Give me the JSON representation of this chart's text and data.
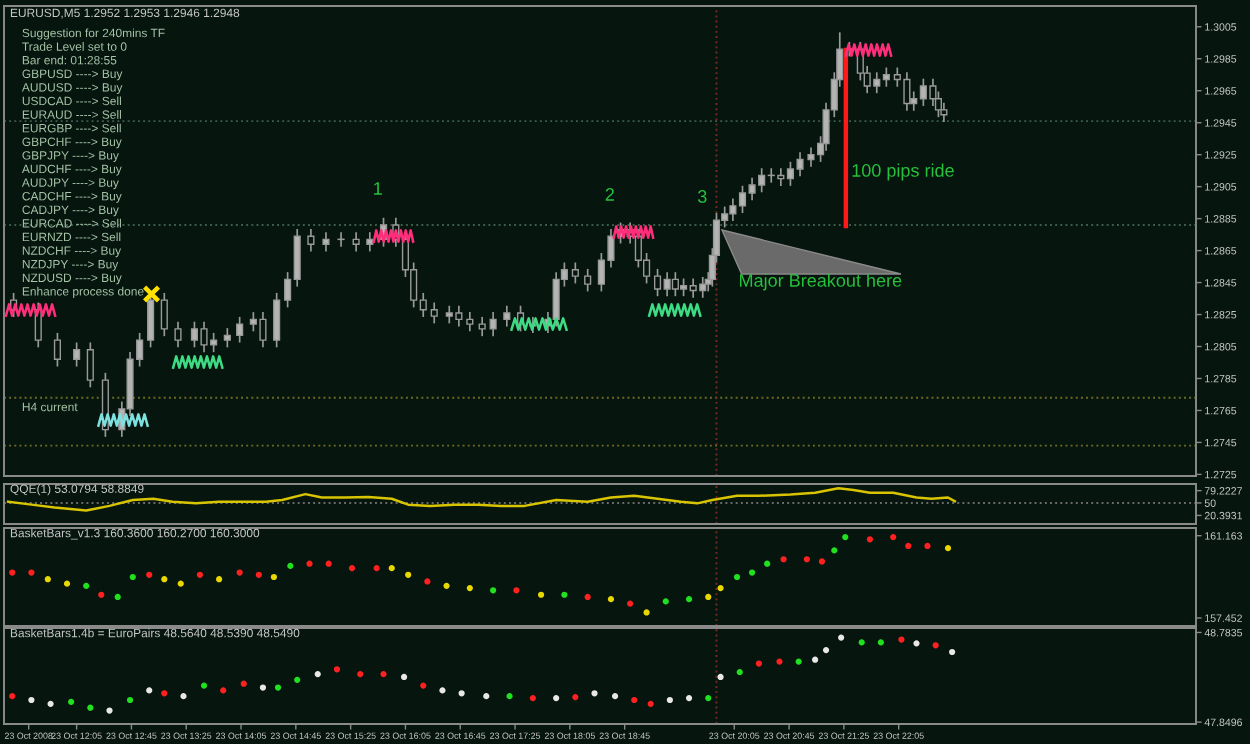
{
  "chart_data": [
    {
      "type": "candlestick",
      "title": "EURUSD,M5 1.2952 1.2953 1.2946 1.2948",
      "grid": false,
      "tick_labels": "y",
      "xlim": [
        "2008-10-23T11:12",
        "2008-10-24T01:42"
      ],
      "ylim": [
        1.2724,
        1.3018
      ],
      "yticks": [
        1.3005,
        1.2985,
        1.2965,
        1.2945,
        1.2925,
        1.2905,
        1.2885,
        1.2865,
        1.2845,
        1.2825,
        1.2805,
        1.2785,
        1.2765,
        1.2745,
        1.2725
      ],
      "x": [
        "2008-10-23T11:19",
        "2008-10-23T11:37",
        "2008-10-23T11:51",
        "2008-10-23T12:05",
        "2008-10-23T12:15",
        "2008-10-23T12:26",
        "2008-10-23T12:38",
        "2008-10-23T12:44",
        "2008-10-23T12:51",
        "2008-10-23T12:59",
        "2008-10-23T13:09",
        "2008-10-23T13:19",
        "2008-10-23T13:31",
        "2008-10-23T13:38",
        "2008-10-23T13:45",
        "2008-10-23T13:55",
        "2008-10-23T14:04",
        "2008-10-23T14:14",
        "2008-10-23T14:21",
        "2008-10-23T14:31",
        "2008-10-23T14:39",
        "2008-10-23T14:46",
        "2008-10-23T14:56",
        "2008-10-23T15:07",
        "2008-10-23T15:18",
        "2008-10-23T15:29",
        "2008-10-23T15:39",
        "2008-10-23T15:49",
        "2008-10-23T15:58",
        "2008-10-23T16:05",
        "2008-10-23T16:11",
        "2008-10-23T16:18",
        "2008-10-23T16:26",
        "2008-10-23T16:37",
        "2008-10-23T16:44",
        "2008-10-23T16:52",
        "2008-10-23T17:01",
        "2008-10-23T17:09",
        "2008-10-23T17:19",
        "2008-10-23T17:29",
        "2008-10-23T17:38",
        "2008-10-23T17:49",
        "2008-10-23T17:55",
        "2008-10-23T18:01",
        "2008-10-23T18:09",
        "2008-10-23T18:18",
        "2008-10-23T18:28",
        "2008-10-23T18:35",
        "2008-10-23T18:42",
        "2008-10-23T18:49",
        "2008-10-23T18:55",
        "2008-10-23T19:01",
        "2008-10-23T19:09",
        "2008-10-23T19:16",
        "2008-10-23T19:22",
        "2008-10-23T19:28",
        "2008-10-23T19:35",
        "2008-10-23T19:42",
        "2008-10-23T19:46",
        "2008-10-23T19:49",
        "2008-10-23T19:52",
        "2008-10-23T19:58",
        "2008-10-23T20:04",
        "2008-10-23T20:11",
        "2008-10-23T20:18",
        "2008-10-23T20:25",
        "2008-10-23T20:32",
        "2008-10-23T20:39",
        "2008-10-23T20:46",
        "2008-10-23T20:53",
        "2008-10-23T21:01",
        "2008-10-23T21:08",
        "2008-10-23T21:12",
        "2008-10-23T21:18",
        "2008-10-23T21:22",
        "2008-10-23T21:29",
        "2008-10-23T21:37",
        "2008-10-23T21:42",
        "2008-10-23T21:49",
        "2008-10-23T21:56",
        "2008-10-23T22:04",
        "2008-10-23T22:11",
        "2008-10-23T22:16",
        "2008-10-23T22:23",
        "2008-10-23T22:30",
        "2008-10-23T22:34",
        "2008-10-23T22:38"
      ],
      "ohlc": [
        [
          1.2834,
          1.2838,
          1.2824,
          1.2828
        ],
        [
          1.2828,
          1.2832,
          1.2805,
          1.2809
        ],
        [
          1.2809,
          1.2813,
          1.2793,
          1.2797
        ],
        [
          1.2797,
          1.2807,
          1.2793,
          1.2803
        ],
        [
          1.2803,
          1.2807,
          1.278,
          1.2784
        ],
        [
          1.2784,
          1.2788,
          1.2749,
          1.2753
        ],
        [
          1.2753,
          1.277,
          1.2749,
          1.2766
        ],
        [
          1.2766,
          1.2801,
          1.2762,
          1.2797
        ],
        [
          1.2797,
          1.2813,
          1.2793,
          1.2809
        ],
        [
          1.2809,
          1.2838,
          1.2805,
          1.2834
        ],
        [
          1.2834,
          1.2838,
          1.2812,
          1.2816
        ],
        [
          1.2816,
          1.282,
          1.2805,
          1.2809
        ],
        [
          1.2809,
          1.282,
          1.2805,
          1.2816
        ],
        [
          1.2816,
          1.282,
          1.2802,
          1.2806
        ],
        [
          1.2806,
          1.2813,
          1.2802,
          1.2809
        ],
        [
          1.2809,
          1.2816,
          1.2805,
          1.2812
        ],
        [
          1.2812,
          1.2823,
          1.2808,
          1.2819
        ],
        [
          1.2819,
          1.2826,
          1.2815,
          1.2822
        ],
        [
          1.2822,
          1.2826,
          1.2805,
          1.2809
        ],
        [
          1.2809,
          1.2838,
          1.2805,
          1.2834
        ],
        [
          1.2834,
          1.2851,
          1.283,
          1.2847
        ],
        [
          1.2847,
          1.2878,
          1.2843,
          1.2874
        ],
        [
          1.2874,
          1.2878,
          1.2865,
          1.2869
        ],
        [
          1.2869,
          1.2876,
          1.2865,
          1.2872
        ],
        [
          1.2872,
          1.2876,
          1.2868,
          1.2872
        ],
        [
          1.2872,
          1.2876,
          1.2865,
          1.2869
        ],
        [
          1.2869,
          1.2876,
          1.2865,
          1.2872
        ],
        [
          1.2872,
          1.2885,
          1.2868,
          1.2881
        ],
        [
          1.2881,
          1.2885,
          1.2868,
          1.2872
        ],
        [
          1.2872,
          1.2876,
          1.2849,
          1.2853
        ],
        [
          1.2853,
          1.2857,
          1.283,
          1.2834
        ],
        [
          1.2834,
          1.2838,
          1.2824,
          1.2828
        ],
        [
          1.2828,
          1.2832,
          1.282,
          1.2824
        ],
        [
          1.2824,
          1.283,
          1.282,
          1.2826
        ],
        [
          1.2826,
          1.283,
          1.2818,
          1.2822
        ],
        [
          1.2822,
          1.2826,
          1.2815,
          1.2819
        ],
        [
          1.2819,
          1.2823,
          1.2812,
          1.2816
        ],
        [
          1.2816,
          1.2826,
          1.2812,
          1.2822
        ],
        [
          1.2822,
          1.283,
          1.2818,
          1.2826
        ],
        [
          1.2826,
          1.283,
          1.2815,
          1.2819
        ],
        [
          1.2819,
          1.2823,
          1.2814,
          1.2818
        ],
        [
          1.2818,
          1.2826,
          1.2814,
          1.2822
        ],
        [
          1.2822,
          1.2851,
          1.2818,
          1.2847
        ],
        [
          1.2847,
          1.2857,
          1.2843,
          1.2853
        ],
        [
          1.2853,
          1.2857,
          1.2845,
          1.2849
        ],
        [
          1.2849,
          1.2853,
          1.284,
          1.2844
        ],
        [
          1.2844,
          1.2863,
          1.284,
          1.2859
        ],
        [
          1.2859,
          1.2878,
          1.2855,
          1.2874
        ],
        [
          1.2874,
          1.2882,
          1.287,
          1.2878
        ],
        [
          1.2878,
          1.2882,
          1.287,
          1.2874
        ],
        [
          1.2874,
          1.2878,
          1.2855,
          1.2859
        ],
        [
          1.2859,
          1.2863,
          1.2845,
          1.2849
        ],
        [
          1.2849,
          1.2853,
          1.2837,
          1.2841
        ],
        [
          1.2841,
          1.2851,
          1.2837,
          1.2847
        ],
        [
          1.2847,
          1.2851,
          1.2837,
          1.2841
        ],
        [
          1.2841,
          1.2847,
          1.2837,
          1.2843
        ],
        [
          1.2843,
          1.2847,
          1.2836,
          1.284
        ],
        [
          1.284,
          1.2848,
          1.2836,
          1.2844
        ],
        [
          1.2844,
          1.2851,
          1.284,
          1.2847
        ],
        [
          1.2847,
          1.2866,
          1.2843,
          1.2862
        ],
        [
          1.2862,
          1.2888,
          1.2858,
          1.2884
        ],
        [
          1.2884,
          1.2892,
          1.288,
          1.2888
        ],
        [
          1.2888,
          1.2897,
          1.2884,
          1.2893
        ],
        [
          1.2893,
          1.2905,
          1.2889,
          1.2901
        ],
        [
          1.2901,
          1.291,
          1.2897,
          1.2906
        ],
        [
          1.2906,
          1.2916,
          1.2902,
          1.2912
        ],
        [
          1.2912,
          1.2916,
          1.2908,
          1.2912
        ],
        [
          1.2912,
          1.2916,
          1.2906,
          1.291
        ],
        [
          1.291,
          1.292,
          1.2906,
          1.2916
        ],
        [
          1.2916,
          1.2926,
          1.2912,
          1.2922
        ],
        [
          1.2922,
          1.2929,
          1.2918,
          1.2925
        ],
        [
          1.2925,
          1.2936,
          1.2921,
          1.2932
        ],
        [
          1.2932,
          1.2957,
          1.2928,
          1.2953
        ],
        [
          1.2953,
          1.2976,
          1.2949,
          1.2972
        ],
        [
          1.2972,
          1.3001,
          1.2968,
          1.2991
        ],
        [
          1.2991,
          1.2995,
          1.2987,
          1.2991
        ],
        [
          1.2991,
          1.2995,
          1.2972,
          1.2976
        ],
        [
          1.2976,
          1.298,
          1.2964,
          1.2968
        ],
        [
          1.2968,
          1.2976,
          1.2964,
          1.2972
        ],
        [
          1.2972,
          1.2979,
          1.2968,
          1.2975
        ],
        [
          1.2975,
          1.2979,
          1.2968,
          1.2972
        ],
        [
          1.2972,
          1.2976,
          1.2953,
          1.2957
        ],
        [
          1.2957,
          1.2964,
          1.2953,
          1.296
        ],
        [
          1.296,
          1.2972,
          1.2956,
          1.2968
        ],
        [
          1.2968,
          1.2972,
          1.2956,
          1.296
        ],
        [
          1.296,
          1.2964,
          1.2949,
          1.2953
        ],
        [
          1.2953,
          1.2957,
          1.2946,
          1.295
        ]
      ],
      "ref_lines": [
        {
          "axis": "y",
          "value": 1.2946,
          "color": "#3d5c4c",
          "line_style": "dotted"
        },
        {
          "axis": "y",
          "value": 1.2881,
          "color": "#3d5c4c",
          "line_style": "dotted"
        },
        {
          "axis": "y",
          "value": 1.2773,
          "color": "#6e6a24",
          "line_style": "dotted"
        },
        {
          "axis": "y",
          "value": 1.2743,
          "color": "#6e6a24",
          "line_style": "dotted"
        },
        {
          "axis": "x",
          "value": "2008-10-23T19:52",
          "color": "#7a2a20",
          "line_style": "dotted"
        }
      ],
      "annotations": [
        "1",
        "2",
        "3",
        "Major Breakout here",
        "100 pips ride",
        "Suggestion for 240mins TF",
        "Trade Level set to 0",
        "Bar end: 01:28:55",
        "GBPUSD ----> Buy",
        "AUDUSD ----> Buy",
        "USDCAD ----> Sell",
        "EURAUD ----> Sell",
        "EURGBP ----> Sell",
        "GBPCHF ----> Buy",
        "GBPJPY ----> Buy",
        "AUDCHF ----> Buy",
        "AUDJPY ----> Buy",
        "CADCHF ----> Buy",
        "CADJPY ----> Buy",
        "EURCAD ----> Sell",
        "EURNZD ----> Sell",
        "NZDCHF ----> Buy",
        "NZDJPY ----> Buy",
        "NZDUSD ----> Buy",
        "Enhance process done",
        "H4 current"
      ]
    },
    {
      "type": "line",
      "title": "QQE(1) 53.0794 58.8849",
      "grid": false,
      "tick_labels": "y",
      "xlim": [
        "2008-10-23T11:12",
        "2008-10-24T01:42"
      ],
      "ylim": [
        0,
        95
      ],
      "yticks": [
        79.2227,
        50,
        20.3931
      ],
      "series": [
        {
          "color": "#d8c400",
          "x": [
            "2008-10-23T11:15",
            "2008-10-23T11:32",
            "2008-10-23T11:49",
            "2008-10-23T12:12",
            "2008-10-23T12:29",
            "2008-10-23T12:46",
            "2008-10-23T13:01",
            "2008-10-23T13:15",
            "2008-10-23T13:32",
            "2008-10-23T13:49",
            "2008-10-23T14:07",
            "2008-10-23T14:23",
            "2008-10-23T14:35",
            "2008-10-23T14:52",
            "2008-10-23T15:04",
            "2008-10-23T15:21",
            "2008-10-23T15:38",
            "2008-10-23T15:55",
            "2008-10-23T16:07",
            "2008-10-23T16:23",
            "2008-10-23T16:41",
            "2008-10-23T16:58",
            "2008-10-23T17:15",
            "2008-10-23T17:32",
            "2008-10-23T17:55",
            "2008-10-23T18:18",
            "2008-10-23T18:35",
            "2008-10-23T18:52",
            "2008-10-23T19:09",
            "2008-10-23T19:26",
            "2008-10-23T19:38",
            "2008-10-23T19:49",
            "2008-10-23T20:07",
            "2008-10-23T20:23",
            "2008-10-23T20:46",
            "2008-10-23T21:04",
            "2008-10-23T21:21",
            "2008-10-23T21:32",
            "2008-10-23T21:44",
            "2008-10-23T22:01",
            "2008-10-23T22:18",
            "2008-10-23T22:29",
            "2008-10-23T22:41",
            "2008-10-23T22:46"
          ],
          "values": [
            53,
            46,
            39,
            32,
            43,
            57,
            60,
            53,
            49,
            53,
            53,
            53,
            57,
            71,
            63,
            63,
            64,
            60,
            46,
            43,
            46,
            46,
            43,
            43,
            57,
            53,
            63,
            67,
            60,
            53,
            49,
            57,
            67,
            67,
            70,
            74,
            85,
            81,
            74,
            74,
            63,
            60,
            63,
            54
          ]
        }
      ],
      "ref_lines": [
        {
          "axis": "y",
          "value": 50,
          "color": "#6a6a6a",
          "line_style": "dotted"
        },
        {
          "axis": "x",
          "value": "2008-10-23T19:52",
          "color": "#7a2a20",
          "line_style": "dotted"
        }
      ]
    },
    {
      "type": "scatter",
      "title": "BasketBars_v1.3 160.3600 160.2700 160.3000",
      "grid": false,
      "tick_labels": "y",
      "xlim": [
        "2008-10-23T11:12",
        "2008-10-24T01:42"
      ],
      "ylim": [
        157.09,
        161.51
      ],
      "yticks": [
        161.163,
        157.452
      ],
      "x": [
        "2008-10-23T11:18",
        "2008-10-23T11:32",
        "2008-10-23T11:44",
        "2008-10-23T11:58",
        "2008-10-23T12:12",
        "2008-10-23T12:23",
        "2008-10-23T12:35",
        "2008-10-23T12:46",
        "2008-10-23T12:58",
        "2008-10-23T13:09",
        "2008-10-23T13:21",
        "2008-10-23T13:35",
        "2008-10-23T13:49",
        "2008-10-23T14:04",
        "2008-10-23T14:18",
        "2008-10-23T14:29",
        "2008-10-23T14:41",
        "2008-10-23T14:55",
        "2008-10-23T15:09",
        "2008-10-23T15:26",
        "2008-10-23T15:44",
        "2008-10-23T15:55",
        "2008-10-23T16:07",
        "2008-10-23T16:21",
        "2008-10-23T16:35",
        "2008-10-23T16:52",
        "2008-10-23T17:09",
        "2008-10-23T17:26",
        "2008-10-23T17:44",
        "2008-10-23T18:01",
        "2008-10-23T18:18",
        "2008-10-23T18:35",
        "2008-10-23T18:49",
        "2008-10-23T19:01",
        "2008-10-23T19:15",
        "2008-10-23T19:32",
        "2008-10-23T19:46",
        "2008-10-23T19:55",
        "2008-10-23T20:07",
        "2008-10-23T20:18",
        "2008-10-23T20:29",
        "2008-10-23T20:41",
        "2008-10-23T20:58",
        "2008-10-23T21:09",
        "2008-10-23T21:18",
        "2008-10-23T21:26",
        "2008-10-23T21:44",
        "2008-10-23T22:01",
        "2008-10-23T22:12",
        "2008-10-23T22:26",
        "2008-10-23T22:41"
      ],
      "values": [
        159.5,
        159.5,
        159.2,
        159.0,
        158.9,
        158.5,
        158.4,
        159.3,
        159.4,
        159.2,
        159.0,
        159.4,
        159.2,
        159.5,
        159.4,
        159.3,
        159.8,
        159.9,
        159.9,
        159.7,
        159.7,
        159.7,
        159.4,
        159.1,
        158.9,
        158.8,
        158.7,
        158.7,
        158.5,
        158.5,
        158.4,
        158.3,
        158.1,
        157.7,
        158.2,
        158.3,
        158.4,
        158.8,
        159.3,
        159.5,
        159.9,
        160.1,
        160.1,
        160.0,
        160.5,
        161.1,
        161.0,
        161.1,
        160.7,
        160.7,
        160.6
      ],
      "colors": [
        "#ff2020",
        "#ff2020",
        "#e8d800",
        "#e8d800",
        "#20e020",
        "#ff2020",
        "#20e020",
        "#20e020",
        "#ff2020",
        "#e8d800",
        "#e8d800",
        "#ff2020",
        "#e8d800",
        "#ff2020",
        "#ff2020",
        "#e8d800",
        "#20e020",
        "#ff2020",
        "#ff2020",
        "#ff2020",
        "#ff2020",
        "#e8d800",
        "#e8d800",
        "#ff2020",
        "#e8d800",
        "#e8d800",
        "#20e020",
        "#ff2020",
        "#e8d800",
        "#20e020",
        "#ff2020",
        "#e8d800",
        "#ff2020",
        "#e8d800",
        "#20e020",
        "#20e020",
        "#e8d800",
        "#e8d800",
        "#20e020",
        "#20e020",
        "#20e020",
        "#ff2020",
        "#ff2020",
        "#ff2020",
        "#20e020",
        "#20e020",
        "#ff2020",
        "#ff2020",
        "#ff2020",
        "#ff2020",
        "#e8d800"
      ],
      "ref_lines": [
        {
          "axis": "x",
          "value": "2008-10-23T19:52",
          "color": "#7a2a20",
          "line_style": "dotted"
        }
      ]
    },
    {
      "type": "scatter",
      "title": "BasketBars1.4b = EuroPairs 48.5640 48.5390 48.5490",
      "grid": false,
      "xlim": [
        "2008-10-23T11:12",
        "2008-10-24T01:42"
      ],
      "ylim": [
        47.83,
        48.83
      ],
      "yticks": [
        48.7835,
        47.8496
      ],
      "xticks": [
        {
          "value": "2008-10-23T11:30",
          "label": "23 Oct 2008"
        },
        {
          "value": "2008-10-23T12:05",
          "label": "23 Oct 12:05"
        },
        {
          "value": "2008-10-23T12:45",
          "label": "23 Oct 12:45"
        },
        {
          "value": "2008-10-23T13:25",
          "label": "23 Oct 13:25"
        },
        {
          "value": "2008-10-23T14:05",
          "label": "23 Oct 14:05"
        },
        {
          "value": "2008-10-23T14:45",
          "label": "23 Oct 14:45"
        },
        {
          "value": "2008-10-23T15:25",
          "label": "23 Oct 15:25"
        },
        {
          "value": "2008-10-23T16:05",
          "label": "23 Oct 16:05"
        },
        {
          "value": "2008-10-23T16:45",
          "label": "23 Oct 16:45"
        },
        {
          "value": "2008-10-23T17:25",
          "label": "23 Oct 17:25"
        },
        {
          "value": "2008-10-23T18:05",
          "label": "23 Oct 18:05"
        },
        {
          "value": "2008-10-23T18:45",
          "label": "23 Oct 18:45"
        },
        {
          "value": "2008-10-23T20:05",
          "label": "23 Oct 20:05"
        },
        {
          "value": "2008-10-23T20:45",
          "label": "23 Oct 20:45"
        },
        {
          "value": "2008-10-23T21:25",
          "label": "23 Oct 21:25"
        },
        {
          "value": "2008-10-23T22:05",
          "label": "23 Oct 22:05"
        }
      ],
      "x": [
        "2008-10-23T11:18",
        "2008-10-23T11:32",
        "2008-10-23T11:46",
        "2008-10-23T12:01",
        "2008-10-23T12:15",
        "2008-10-23T12:29",
        "2008-10-23T12:44",
        "2008-10-23T12:58",
        "2008-10-23T13:09",
        "2008-10-23T13:23",
        "2008-10-23T13:38",
        "2008-10-23T13:52",
        "2008-10-23T14:07",
        "2008-10-23T14:21",
        "2008-10-23T14:32",
        "2008-10-23T14:46",
        "2008-10-23T15:01",
        "2008-10-23T15:15",
        "2008-10-23T15:32",
        "2008-10-23T15:49",
        "2008-10-23T16:04",
        "2008-10-23T16:18",
        "2008-10-23T16:32",
        "2008-10-23T16:46",
        "2008-10-23T17:04",
        "2008-10-23T17:21",
        "2008-10-23T17:38",
        "2008-10-23T17:55",
        "2008-10-23T18:09",
        "2008-10-23T18:23",
        "2008-10-23T18:38",
        "2008-10-23T18:52",
        "2008-10-23T19:04",
        "2008-10-23T19:18",
        "2008-10-23T19:32",
        "2008-10-23T19:46",
        "2008-10-23T19:55",
        "2008-10-23T20:09",
        "2008-10-23T20:23",
        "2008-10-23T20:38",
        "2008-10-23T20:52",
        "2008-10-23T21:04",
        "2008-10-23T21:12",
        "2008-10-23T21:23",
        "2008-10-23T21:38",
        "2008-10-23T21:52",
        "2008-10-23T22:07",
        "2008-10-23T22:18",
        "2008-10-23T22:32",
        "2008-10-23T22:44"
      ],
      "values": [
        48.12,
        48.08,
        48.04,
        48.06,
        48.0,
        47.97,
        48.08,
        48.18,
        48.15,
        48.12,
        48.23,
        48.18,
        48.25,
        48.21,
        48.21,
        48.29,
        48.35,
        48.4,
        48.35,
        48.35,
        48.32,
        48.23,
        48.18,
        48.15,
        48.12,
        48.12,
        48.1,
        48.1,
        48.11,
        48.15,
        48.12,
        48.08,
        48.04,
        48.08,
        48.1,
        48.1,
        48.32,
        48.37,
        48.46,
        48.48,
        48.48,
        48.5,
        48.6,
        48.73,
        48.68,
        48.68,
        48.71,
        48.67,
        48.65,
        48.58
      ],
      "colors": [
        "#ff2020",
        "#e8e8e8",
        "#e8e8e8",
        "#20e020",
        "#20e020",
        "#e8e8e8",
        "#20e020",
        "#e8e8e8",
        "#ff2020",
        "#e8e8e8",
        "#20e020",
        "#ff2020",
        "#ff2020",
        "#e8e8e8",
        "#20e020",
        "#20e020",
        "#e8e8e8",
        "#ff2020",
        "#ff2020",
        "#ff2020",
        "#e8e8e8",
        "#ff2020",
        "#e8e8e8",
        "#e8e8e8",
        "#e8e8e8",
        "#20e020",
        "#ff2020",
        "#e8e8e8",
        "#ff2020",
        "#e8e8e8",
        "#e8e8e8",
        "#ff2020",
        "#ff2020",
        "#e8e8e8",
        "#e8e8e8",
        "#20e020",
        "#e8e8e8",
        "#20e020",
        "#ff2020",
        "#ff2020",
        "#20e020",
        "#e8e8e8",
        "#e8e8e8",
        "#e8e8e8",
        "#20e020",
        "#20e020",
        "#ff2020",
        "#e8e8e8",
        "#ff2020",
        "#e8e8e8"
      ],
      "ref_lines": [
        {
          "axis": "x",
          "value": "2008-10-23T19:52",
          "color": "#7a2a20",
          "line_style": "dotted"
        }
      ]
    }
  ]
}
